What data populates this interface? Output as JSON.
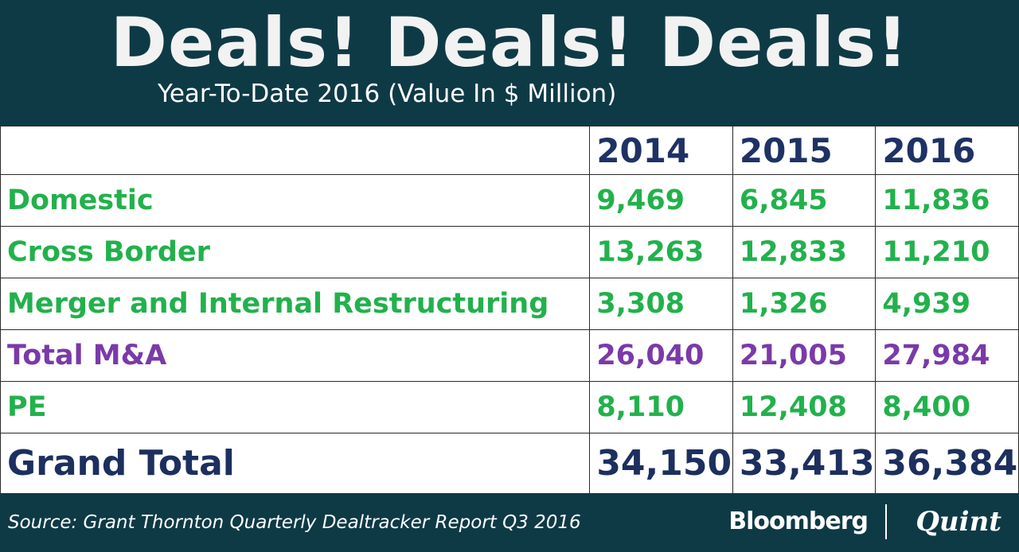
{
  "header": {
    "title": "Deals! Deals! Deals!",
    "subtitle": "Year-To-Date 2016 (Value In $ Million)"
  },
  "chart_data": {
    "type": "table",
    "title": "Deals! Deals! Deals!",
    "subtitle": "Year-To-Date 2016 (Value In $ Million)",
    "columns": [
      "2014",
      "2015",
      "2016"
    ],
    "rows": [
      {
        "label": "Domestic",
        "values": [
          "9,469",
          "6,845",
          "11,836"
        ]
      },
      {
        "label": "Cross Border",
        "values": [
          "13,263",
          "12,833",
          "11,210"
        ]
      },
      {
        "label": "Merger and Internal Restructuring",
        "values": [
          "3,308",
          "1,326",
          "4,939"
        ]
      },
      {
        "label": "Total M&A",
        "values": [
          "26,040",
          "21,005",
          "27,984"
        ]
      },
      {
        "label": "PE",
        "values": [
          "8,110",
          "12,408",
          "8,400"
        ]
      },
      {
        "label": "Grand Total",
        "values": [
          "34,150",
          "33,413",
          "36,384"
        ]
      }
    ]
  },
  "footer": {
    "source": "Source: Grant Thornton Quarterly Dealtracker Report Q3 2016",
    "brand_left": "Bloomberg",
    "brand_right": "Quint"
  },
  "colors": {
    "background": "#0e3a46",
    "green": "#22b14c",
    "purple": "#7a3aa8",
    "navy": "#1f3264"
  }
}
